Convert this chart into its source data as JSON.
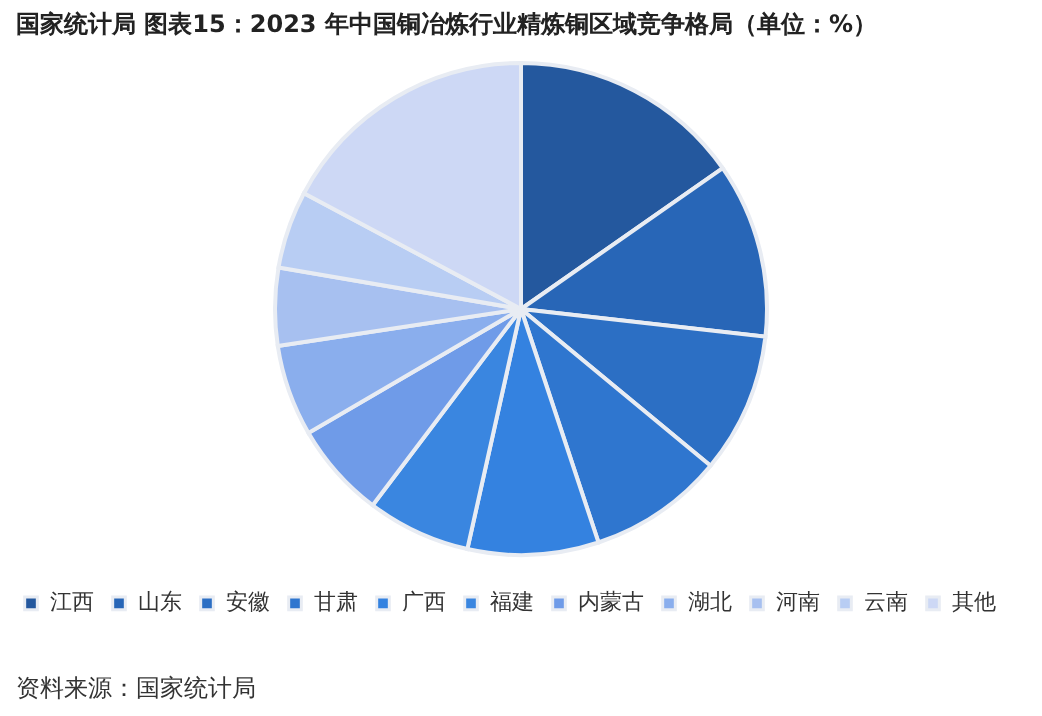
{
  "chart_data": {
    "type": "pie",
    "title": "国家统计局  图表15：2023 年中国铜冶炼行业精炼铜区域竞争格局（单位：%）",
    "categories": [
      "江西",
      "山东",
      "安徽",
      "甘肃",
      "广西",
      "福建",
      "内蒙古",
      "湖北",
      "河南",
      "云南",
      "其他"
    ],
    "values": [
      15.3,
      11.5,
      9.2,
      8.9,
      8.6,
      6.8,
      6.3,
      6.0,
      5.1,
      5.1,
      17.2
    ],
    "colors": [
      "#24589e",
      "#2866b7",
      "#2c6fc4",
      "#2f76cf",
      "#3482e0",
      "#3a86e0",
      "#6f9be8",
      "#8aaeed",
      "#a7c0f0",
      "#b8cdf3",
      "#cdd8f5"
    ],
    "legend": "bottom",
    "annotations": [
      "资料来源：国家统计局"
    ]
  }
}
